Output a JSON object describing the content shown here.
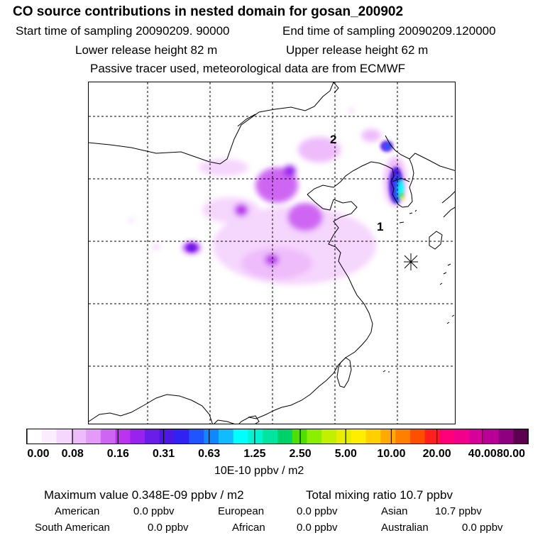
{
  "header": {
    "title": "CO  source contributions in nested domain for gosan_200902",
    "start_time": "Start time of sampling 20090209. 90000",
    "end_time": "End time of sampling 20090209.120000",
    "lower_height": "Lower release height   82 m",
    "upper_height": "Upper release height   62 m",
    "note": "Passive tracer used, meteorological data are from ECMWF"
  },
  "map": {
    "labels": [
      {
        "name": "label-2",
        "text": "2"
      },
      {
        "name": "label-1",
        "text": "1"
      }
    ],
    "gridline_style": "dashed"
  },
  "colorbar": {
    "colors": [
      "#ffffff",
      "#fbecfe",
      "#f5d6fd",
      "#eebcfb",
      "#e49af8",
      "#cf66f3",
      "#bb33ee",
      "#9922ee",
      "#6a1ce9",
      "#4c17e5",
      "#2f22f2",
      "#1f55ff",
      "#0f88ff",
      "#12bbff",
      "#00ffff",
      "#00f4d2",
      "#00e6a0",
      "#00d26a",
      "#4ee000",
      "#8cee00",
      "#c2f000",
      "#e8ee00",
      "#ffee00",
      "#ffd000",
      "#ffaa00",
      "#ff8000",
      "#ff4e00",
      "#ff1f1f",
      "#ff007a",
      "#f2008c",
      "#d6009a",
      "#b80099",
      "#8e007f",
      "#5e0050"
    ],
    "tick_labels": [
      "0.00",
      "0.08",
      "0.16",
      "0.31",
      "0.63",
      "1.25",
      "2.50",
      "5.00",
      "10.00",
      "20.00",
      "40.00",
      "80.00"
    ],
    "units": "10E-10 ppbv / m2"
  },
  "summary": {
    "max_value": "Maximum value  0.348E-09 ppbv / m2",
    "total_mixing": "Total mixing ratio      10.7 ppbv",
    "american_label": "American",
    "american_value": "0.0 ppbv",
    "european_label": "European",
    "european_value": "0.0 ppbv",
    "asian_label": "Asian",
    "asian_value": "10.7 ppbv",
    "south_american_label": "South American",
    "south_american_value": "0.0 ppbv",
    "african_label": "African",
    "african_value": "0.0 ppbv",
    "australian_label": "Australian",
    "australian_value": "0.0 ppbv"
  }
}
